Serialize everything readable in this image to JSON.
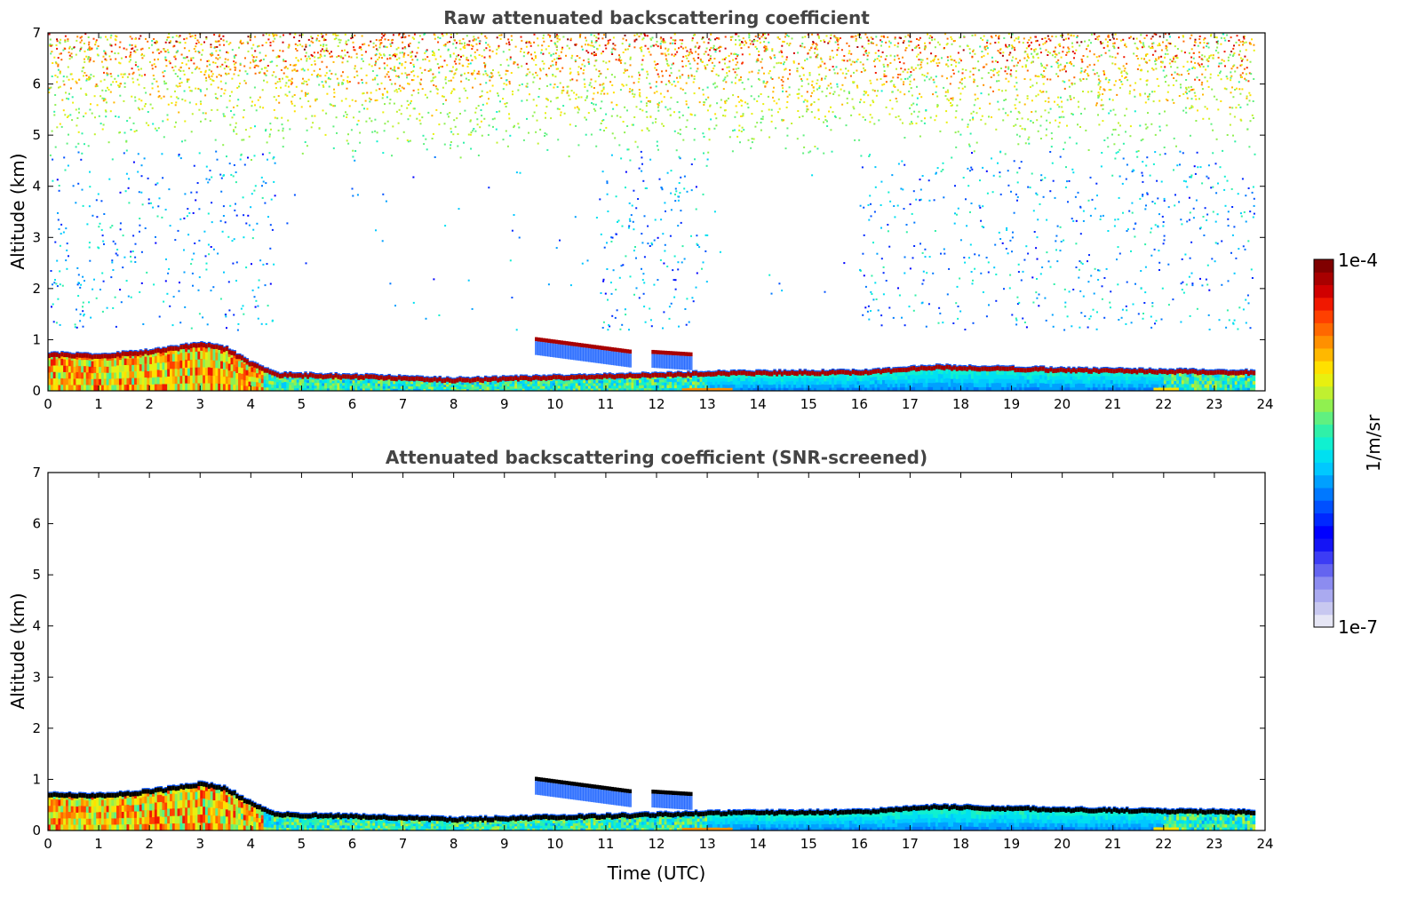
{
  "chart_data": [
    {
      "type": "heatmap",
      "title": "Raw attenuated backscattering coefficient",
      "xlabel": "",
      "ylabel": "Altitude (km)",
      "xlim": [
        0,
        24
      ],
      "ylim": [
        0,
        7
      ],
      "xticks": [
        "0",
        "1",
        "2",
        "3",
        "4",
        "5",
        "6",
        "7",
        "8",
        "9",
        "10",
        "11",
        "12",
        "13",
        "14",
        "15",
        "16",
        "17",
        "18",
        "19",
        "20",
        "21",
        "22",
        "23",
        "24"
      ],
      "yticks": [
        "0",
        "1",
        "2",
        "3",
        "4",
        "5",
        "6",
        "7"
      ],
      "data_end_time": 23.8,
      "boundary_layer_top_km": [
        [
          0,
          0.75
        ],
        [
          1,
          0.72
        ],
        [
          2,
          0.8
        ],
        [
          3,
          0.95
        ],
        [
          3.5,
          0.85
        ],
        [
          4,
          0.55
        ],
        [
          4.5,
          0.35
        ],
        [
          6,
          0.32
        ],
        [
          8,
          0.25
        ],
        [
          10,
          0.3
        ],
        [
          11,
          0.32
        ],
        [
          12,
          0.35
        ],
        [
          13,
          0.38
        ],
        [
          16,
          0.4
        ],
        [
          17.5,
          0.5
        ],
        [
          20,
          0.45
        ],
        [
          22,
          0.42
        ],
        [
          23.8,
          0.4
        ]
      ],
      "elevated_layers": [
        {
          "t_start": 9.6,
          "t_end": 11.5,
          "alt_start_km": 1.05,
          "alt_end_km": 0.8
        },
        {
          "t_start": 11.9,
          "t_end": 12.7,
          "alt_start_km": 0.8,
          "alt_end_km": 0.75
        }
      ],
      "noise_region": {
        "alt_min_km": 4.5,
        "alt_max_km": 7
      },
      "screened": false
    },
    {
      "type": "heatmap",
      "title": "Attenuated backscattering coefficient (SNR-screened)",
      "xlabel": "Time (UTC)",
      "ylabel": "Altitude (km)",
      "xlim": [
        0,
        24
      ],
      "ylim": [
        0,
        7
      ],
      "xticks": [
        "0",
        "1",
        "2",
        "3",
        "4",
        "5",
        "6",
        "7",
        "8",
        "9",
        "10",
        "11",
        "12",
        "13",
        "14",
        "15",
        "16",
        "17",
        "18",
        "19",
        "20",
        "21",
        "22",
        "23",
        "24"
      ],
      "yticks": [
        "0",
        "1",
        "2",
        "3",
        "4",
        "5",
        "6",
        "7"
      ],
      "data_end_time": 23.8,
      "screened": true
    }
  ],
  "colorbar": {
    "label": "1/m/sr",
    "max_label": "1e-4",
    "min_label": "1e-7",
    "scale": "log",
    "colors": [
      "#e6e6f5",
      "#c8c8f0",
      "#aaaaf0",
      "#8c8cf0",
      "#6464f0",
      "#3c3cf5",
      "#1414f5",
      "#0000ff",
      "#0028ff",
      "#0050ff",
      "#0078ff",
      "#00a0ff",
      "#00c8ff",
      "#00e0f0",
      "#10f0d0",
      "#30f0a8",
      "#60f080",
      "#90f050",
      "#c0f030",
      "#e8f010",
      "#ffe000",
      "#ffb800",
      "#ff9000",
      "#ff6800",
      "#ff4000",
      "#f01800",
      "#d00000",
      "#a80000",
      "#800000"
    ]
  }
}
